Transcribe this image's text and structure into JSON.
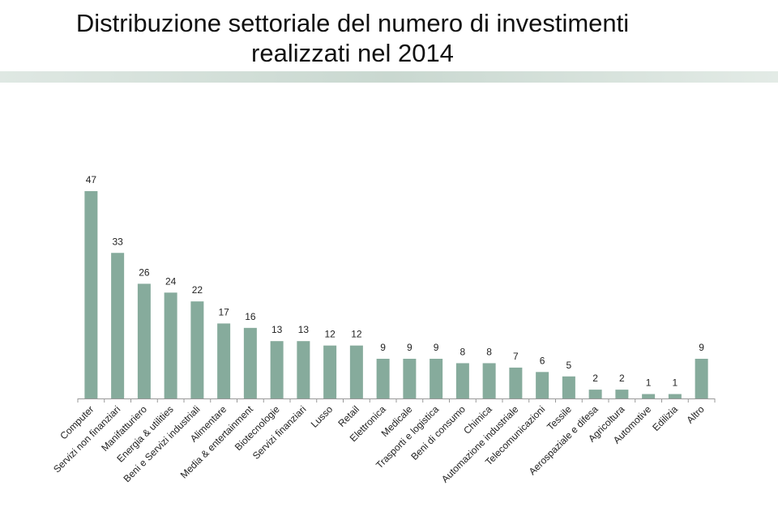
{
  "chart_data": {
    "type": "bar",
    "title": "Distribuzione settoriale del numero di investimenti realizzati nel 2014",
    "categories": [
      "Computer",
      "Servizi non finanziari",
      "Manifatturiero",
      "Energia & utilities",
      "Beni e Servizi industriali",
      "Alimentare",
      "Media & entertainment",
      "Biotecnologie",
      "Servizi finanziari",
      "Lusso",
      "Retail",
      "Elettronica",
      "Medicale",
      "Trasporti e logistica",
      "Beni di consumo",
      "Chimica",
      "Automazione industriale",
      "Telecomunicazioni",
      "Tessile",
      "Aerospaziale e difesa",
      "Agricoltura",
      "Automotive",
      "Edilizia",
      "Altro"
    ],
    "values": [
      47,
      33,
      26,
      24,
      22,
      17,
      16,
      13,
      13,
      12,
      12,
      9,
      9,
      9,
      8,
      8,
      7,
      6,
      5,
      2,
      2,
      1,
      1,
      9
    ],
    "color": "#86ab9c"
  }
}
